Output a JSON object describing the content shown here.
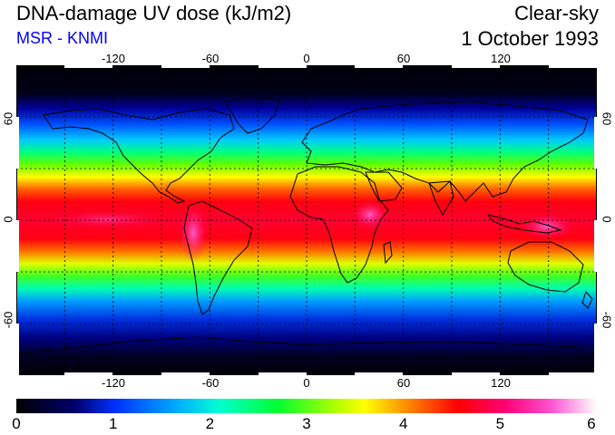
{
  "header": {
    "title": "DNA-damage UV dose (kJ/m2)",
    "subtitle": "MSR - KNMI",
    "sky_condition": "Clear-sky",
    "date": "1 October 1993"
  },
  "map": {
    "longitude_labels": [
      "-120",
      "-60",
      "0",
      "60",
      "120"
    ],
    "latitude_labels": [
      "60",
      "0",
      "-60"
    ],
    "longitude_values": [
      -120,
      -60,
      0,
      60,
      120
    ],
    "latitude_values": [
      60,
      0,
      -60
    ],
    "lon_range": [
      -180,
      180
    ],
    "lat_range": [
      -90,
      90
    ],
    "gridlines": "dotted, every 30 degrees",
    "colors": {
      "ocean_low": "#000010",
      "land_outline": "#000000"
    }
  },
  "colorbar": {
    "tick_labels": [
      "0",
      "1",
      "2",
      "3",
      "4",
      "5",
      "6"
    ],
    "tick_values": [
      0,
      1,
      2,
      3,
      4,
      5,
      6
    ],
    "range": [
      0,
      6
    ],
    "colors": [
      "#000000",
      "#0000a0",
      "#0060ff",
      "#00e0ff",
      "#00ff60",
      "#40ff00",
      "#ffff00",
      "#ff8000",
      "#ff0000",
      "#ff0060",
      "#ff40c0",
      "#ffffff"
    ]
  }
}
